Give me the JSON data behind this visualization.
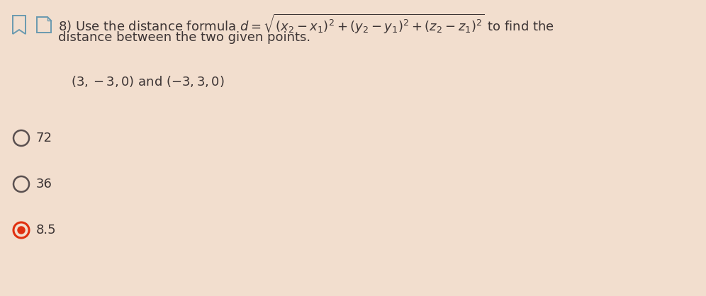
{
  "background_color": "#f2dece",
  "question_number": "8)",
  "formula_text": "Use the distance formula $d = \\sqrt{(x_2 - x_1)^2 + (y_2 - y_1)^2 + (z_2 - z_1)^2}$ to find the",
  "formula_line2": "distance between the two given points.",
  "points_text": "$(3, -3, 0)$ and $(-3, 3, 0)$",
  "options": [
    "72",
    "36",
    "8.5"
  ],
  "selected_option": 2,
  "text_color": "#3d3535",
  "circle_color_unselected_edge": "#5a5050",
  "circle_color_selected_outer": "#e03010",
  "circle_color_selected_inner": "#e03010",
  "icon_color": "#6a9ab0",
  "option_font_size": 13,
  "question_font_size": 13,
  "points_font_size": 13,
  "fig_width": 9.96,
  "fig_height": 4.18,
  "dpi": 100
}
